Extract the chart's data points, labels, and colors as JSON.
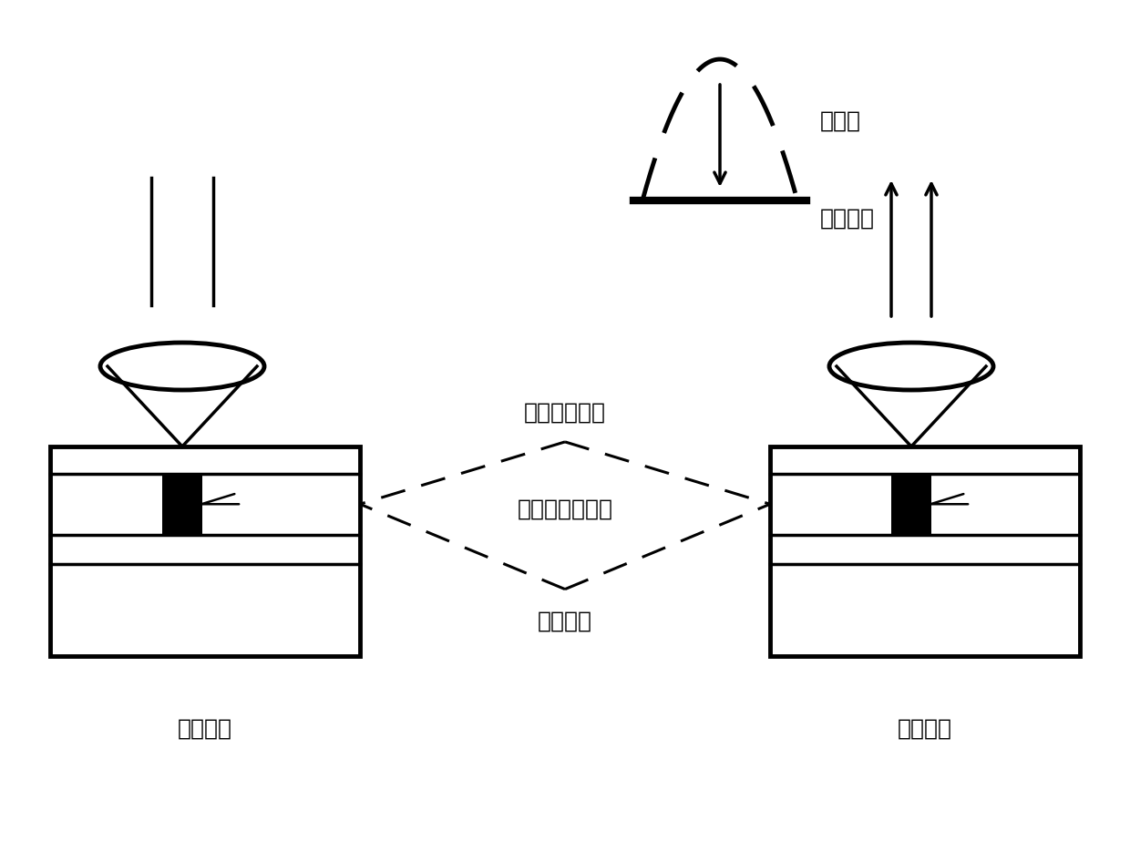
{
  "background_color": "#ffffff",
  "label_fluorescent": "荧光态",
  "label_non_fluorescent": "非荧光态",
  "label_amorphous": "非晶态记录点",
  "label_recording_layer": "荧光相变记录层",
  "label_substrate": "晶态基底",
  "label_write": "写入过程",
  "label_read": "读出过程",
  "font_size_labels": 18,
  "font_size_process": 18
}
